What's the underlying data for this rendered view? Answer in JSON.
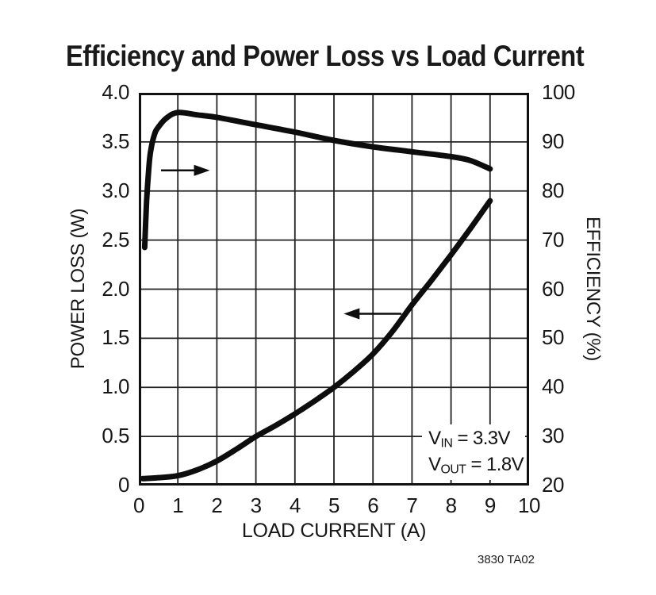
{
  "title": "Efficiency and Power Loss vs Load Current",
  "footer": "3830 TA02",
  "chart_data": {
    "type": "line",
    "title": "Efficiency and Power Loss vs Load Current",
    "xlabel": "LOAD CURRENT (A)",
    "ylabel_left": "POWER LOSS (W)",
    "ylabel_right": "EFFICIENCY (%)",
    "xlim": [
      0,
      10
    ],
    "ylim_left": [
      0,
      4.0
    ],
    "ylim_right": [
      20,
      100
    ],
    "x_ticks": [
      "0",
      "1",
      "2",
      "3",
      "4",
      "5",
      "6",
      "7",
      "8",
      "9",
      "10"
    ],
    "y_ticks_left": [
      "4.0",
      "3.5",
      "3.0",
      "2.5",
      "2.0",
      "1.5",
      "1.0",
      "0.5",
      "0"
    ],
    "y_ticks_right": [
      "100",
      "90",
      "80",
      "70",
      "60",
      "50",
      "40",
      "30",
      "20"
    ],
    "grid": true,
    "legend": "none",
    "series": [
      {
        "name": "efficiency",
        "axis": "right",
        "units": "%",
        "x": [
          0.15,
          0.2,
          0.25,
          0.3,
          0.4,
          0.5,
          0.7,
          1.0,
          1.5,
          2,
          3,
          4,
          5,
          6,
          7,
          8,
          8.5,
          9
        ],
        "y": [
          68.5,
          78,
          84,
          88,
          91.5,
          93,
          94.8,
          96,
          95.5,
          95,
          93.5,
          92,
          90.3,
          89,
          88,
          87,
          86.2,
          84.5
        ]
      },
      {
        "name": "power_loss",
        "axis": "left",
        "units": "W",
        "x": [
          0.1,
          0.5,
          1,
          1.5,
          2,
          2.5,
          3,
          3.5,
          4,
          4.5,
          5,
          5.5,
          6,
          6.5,
          7,
          7.5,
          8,
          8.5,
          9
        ],
        "y": [
          0.07,
          0.08,
          0.1,
          0.16,
          0.25,
          0.37,
          0.5,
          0.61,
          0.73,
          0.86,
          1.0,
          1.16,
          1.34,
          1.57,
          1.84,
          2.09,
          2.35,
          2.62,
          2.9
        ]
      }
    ],
    "arrows": [
      {
        "points_to": "right-axis",
        "direction": "right",
        "tail_x": 0.57,
        "tip_x": 1.82,
        "y_power_loss": 3.21
      },
      {
        "points_to": "left-axis",
        "direction": "left",
        "tail_x": 6.73,
        "tip_x": 5.25,
        "y_power_loss": 1.75
      }
    ],
    "annotations": [
      {
        "prefix": "V",
        "sub": "IN",
        "rest": " = 3.3V"
      },
      {
        "prefix": "V",
        "sub": "OUT",
        "rest": " = 1.8V"
      }
    ],
    "colors": {
      "curve": "#0d0d0d",
      "grid": "#222222",
      "border": "#111111",
      "background": "#ffffff",
      "text": "#171717"
    }
  }
}
